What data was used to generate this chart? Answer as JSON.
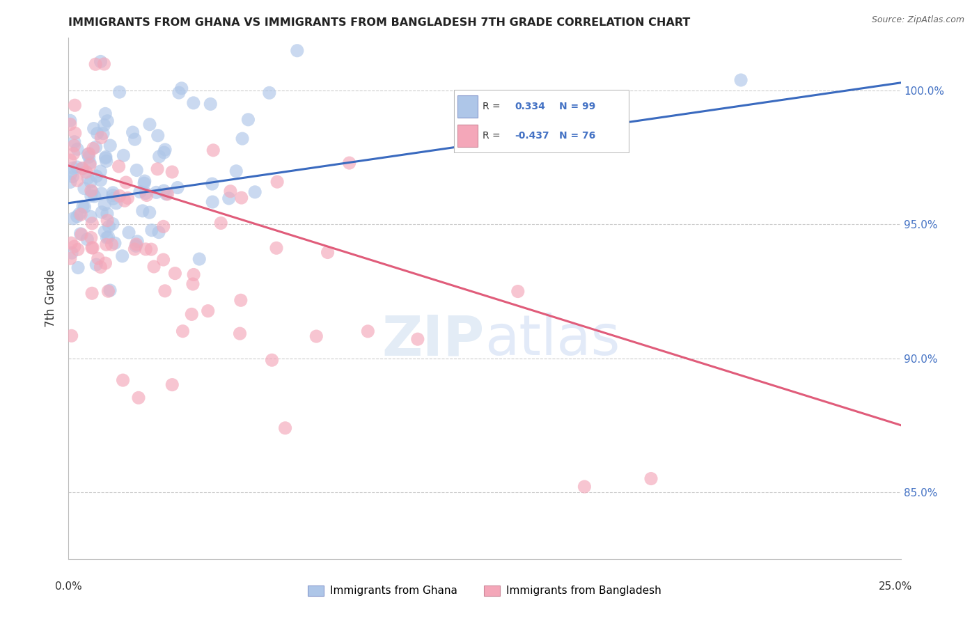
{
  "title": "IMMIGRANTS FROM GHANA VS IMMIGRANTS FROM BANGLADESH 7TH GRADE CORRELATION CHART",
  "source": "Source: ZipAtlas.com",
  "ylabel": "7th Grade",
  "ghana_R": 0.334,
  "ghana_N": 99,
  "bangladesh_R": -0.437,
  "bangladesh_N": 76,
  "ghana_color": "#aec6e8",
  "bangladesh_color": "#f4a7b9",
  "ghana_line_color": "#3a6abf",
  "bangladesh_line_color": "#e05c7a",
  "background_color": "#ffffff",
  "xlim": [
    0.0,
    0.25
  ],
  "ylim": [
    82.5,
    102.0
  ],
  "ghana_line_x0": 0.0,
  "ghana_line_y0": 95.8,
  "ghana_line_x1": 0.25,
  "ghana_line_y1": 100.3,
  "bangladesh_line_x0": 0.0,
  "bangladesh_line_y0": 97.2,
  "bangladesh_line_x1": 0.25,
  "bangladesh_line_y1": 87.5,
  "ytick_vals": [
    85.0,
    90.0,
    95.0,
    100.0
  ],
  "ytick_labels": [
    "85.0%",
    "90.0%",
    "95.0%",
    "100.0%"
  ],
  "legend_R1": "R =",
  "legend_V1": "0.334",
  "legend_N1": "N = 99",
  "legend_R2": "R =",
  "legend_V2": "-0.437",
  "legend_N2": "N = 76"
}
